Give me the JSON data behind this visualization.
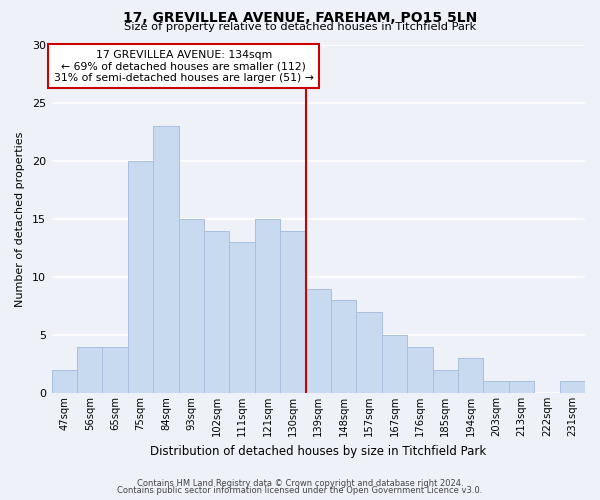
{
  "title1": "17, GREVILLEA AVENUE, FAREHAM, PO15 5LN",
  "title2": "Size of property relative to detached houses in Titchfield Park",
  "xlabel": "Distribution of detached houses by size in Titchfield Park",
  "ylabel": "Number of detached properties",
  "bar_labels": [
    "47sqm",
    "56sqm",
    "65sqm",
    "75sqm",
    "84sqm",
    "93sqm",
    "102sqm",
    "111sqm",
    "121sqm",
    "130sqm",
    "139sqm",
    "148sqm",
    "157sqm",
    "167sqm",
    "176sqm",
    "185sqm",
    "194sqm",
    "203sqm",
    "213sqm",
    "222sqm",
    "231sqm"
  ],
  "bar_values": [
    2,
    4,
    4,
    20,
    23,
    15,
    14,
    13,
    15,
    14,
    9,
    8,
    7,
    5,
    4,
    2,
    3,
    1,
    1,
    0,
    1
  ],
  "bar_color": "#c8daf0",
  "bar_edge_color": "#a8c0de",
  "vline_x": 9.5,
  "vline_color": "#cc0000",
  "ylim": [
    0,
    30
  ],
  "yticks": [
    0,
    5,
    10,
    15,
    20,
    25,
    30
  ],
  "annotation_title": "17 GREVILLEA AVENUE: 134sqm",
  "annotation_line1": "← 69% of detached houses are smaller (112)",
  "annotation_line2": "31% of semi-detached houses are larger (51) →",
  "annotation_box_color": "#ffffff",
  "annotation_box_edge": "#cc0000",
  "footer1": "Contains HM Land Registry data © Crown copyright and database right 2024.",
  "footer2": "Contains public sector information licensed under the Open Government Licence v3.0.",
  "background_color": "#eef2f8",
  "grid_color": "#ffffff"
}
